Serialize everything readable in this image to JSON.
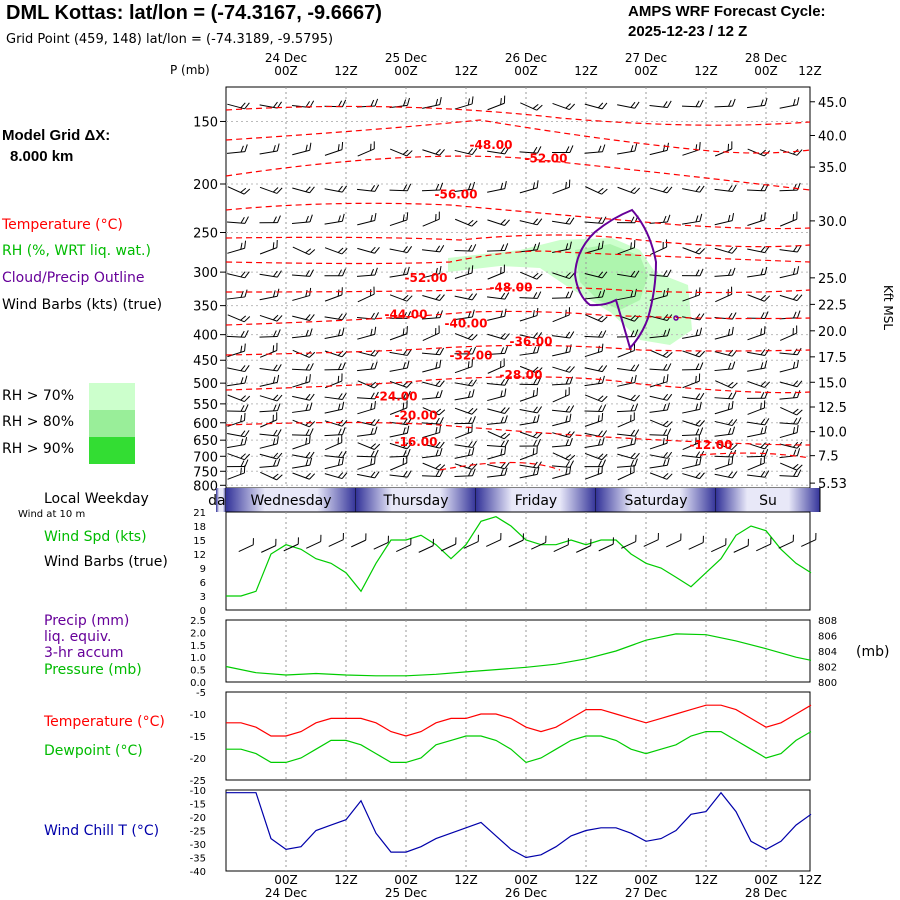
{
  "header": {
    "title": "DML Kottas:  lat/lon = (-74.3167, -9.6667)",
    "grid_point": "Grid Point (459, 148) lat/lon = (-74.3189, -9.5795)",
    "cycle_title": "AMPS WRF Forecast Cycle:",
    "cycle_value": "2025-12-23 / 12  Z"
  },
  "left_panel": {
    "model_grid_label": "Model Grid ΔX:",
    "model_grid_value": "8.000 km",
    "legend": {
      "temperature": "Temperature (°C)",
      "rh": "RH (%, WRT liq. wat.)",
      "cloud": "Cloud/Precip Outline",
      "wind": "Wind Barbs (kts) (true)",
      "rh70": "RH > 70%",
      "rh80": "RH > 80%",
      "rh90": "RH > 90%"
    },
    "local_weekday": "Local Weekday",
    "wind_at": "Wind at 10 m",
    "wind_spd": "Wind Spd (kts)",
    "wind_barbs": "Wind Barbs (true)",
    "precip1": "Precip (mm)",
    "precip2": "liq. equiv.",
    "precip3": "3-hr accum",
    "pressure": "Pressure (mb)",
    "pressure_unit": "(mb)",
    "temp": "Temperature (°C)",
    "dewpoint": "Dewpoint (°C)",
    "windchill": "Wind Chill T (°C)"
  },
  "colors": {
    "temp": "#ff0000",
    "green": "#00cc00",
    "purple": "#660099",
    "blue": "#0000aa",
    "rh70": "#ccffcc",
    "rh80": "#99ee99",
    "rh90": "#33dd33",
    "grid": "#aaaaaa"
  },
  "chart_data": [
    {
      "id": "cross_section",
      "type": "heatmap",
      "ylabel": "P (mb)",
      "right_label": "Kft MSL",
      "time_range_hours": [
        0,
        114
      ],
      "top_dates": [
        "24 Dec",
        "25 Dec",
        "26 Dec",
        "27 Dec",
        "28 Dec"
      ],
      "time_ticks": [
        {
          "h": 12,
          "label": "00Z"
        },
        {
          "h": 24,
          "label": "12Z"
        },
        {
          "h": 36,
          "label": "00Z"
        },
        {
          "h": 48,
          "label": "12Z"
        },
        {
          "h": 60,
          "label": "00Z"
        },
        {
          "h": 72,
          "label": "12Z"
        },
        {
          "h": 84,
          "label": "00Z"
        },
        {
          "h": 96,
          "label": "12Z"
        },
        {
          "h": 108,
          "label": "00Z"
        },
        {
          "h": 120,
          "label": "12Z"
        }
      ],
      "pressure_ticks": [
        150,
        200,
        250,
        300,
        350,
        400,
        450,
        500,
        550,
        600,
        650,
        700,
        750,
        800
      ],
      "height_ticks_kft": [
        {
          "p": 137,
          "label": "45.0"
        },
        {
          "p": 160,
          "label": "40.0"
        },
        {
          "p": 185,
          "label": "35.0"
        },
        {
          "p": 237,
          "label": "30.0"
        },
        {
          "p": 308,
          "label": "25.0"
        },
        {
          "p": 348,
          "label": "22.5"
        },
        {
          "p": 393,
          "label": "20.0"
        },
        {
          "p": 443,
          "label": "17.5"
        },
        {
          "p": 498,
          "label": "15.0"
        },
        {
          "p": 558,
          "label": "12.5"
        },
        {
          "p": 625,
          "label": "10.0"
        },
        {
          "p": 698,
          "label": "7.5"
        },
        {
          "p": 792,
          "label": "5.53"
        }
      ],
      "temperature_labels": [
        {
          "label": "-48.00",
          "h": 53,
          "p": 167
        },
        {
          "label": "-52.00",
          "h": 64,
          "p": 178
        },
        {
          "label": "-56.00",
          "h": 46,
          "p": 210
        },
        {
          "label": "-52.00",
          "h": 40,
          "p": 308
        },
        {
          "label": "-48.00",
          "h": 57,
          "p": 322
        },
        {
          "label": "-44.00",
          "h": 36,
          "p": 365
        },
        {
          "label": "-40.00",
          "h": 48,
          "p": 380
        },
        {
          "label": "-36.00",
          "h": 61,
          "p": 413
        },
        {
          "label": "-32.00",
          "h": 49,
          "p": 440
        },
        {
          "label": "-28.00",
          "h": 59,
          "p": 482
        },
        {
          "label": "-24.00",
          "h": 34,
          "p": 532
        },
        {
          "label": "-20.00",
          "h": 38,
          "p": 580
        },
        {
          "label": "-16.00",
          "h": 38,
          "p": 655
        },
        {
          "label": "-12.00",
          "h": 97,
          "p": 665
        }
      ]
    },
    {
      "id": "wind",
      "type": "line",
      "title": "Wind Spd (kts)",
      "ylim": [
        0,
        21
      ],
      "yticks": [
        0,
        3,
        6,
        9,
        12,
        15,
        18,
        21
      ],
      "x": [
        0,
        3,
        6,
        9,
        12,
        15,
        18,
        21,
        24,
        27,
        30,
        33,
        36,
        39,
        42,
        45,
        48,
        51,
        54,
        57,
        60,
        63,
        66,
        69,
        72,
        75,
        78,
        81,
        84,
        87,
        90,
        93,
        96,
        99,
        102,
        105,
        108,
        111,
        114,
        117
      ],
      "values": [
        3,
        3,
        4,
        12,
        14,
        13,
        11,
        10,
        8,
        4,
        10,
        15,
        15,
        16,
        14,
        11,
        14,
        19,
        20,
        18,
        15,
        14,
        14,
        15,
        14,
        15,
        15,
        12,
        10,
        9,
        7,
        5,
        8,
        11,
        16,
        18,
        17,
        13,
        10,
        8
      ]
    },
    {
      "id": "precip_pressure",
      "type": "line",
      "ylim": [
        0,
        2.5
      ],
      "yticks": [
        0.0,
        0.5,
        1.0,
        1.5,
        2.0,
        2.5
      ],
      "ylim_right": [
        800,
        808
      ],
      "yticks_right": [
        800,
        802,
        804,
        806,
        808
      ],
      "series": [
        {
          "name": "Pressure (mb)",
          "axis": "right",
          "x": [
            0,
            6,
            12,
            18,
            24,
            30,
            36,
            42,
            48,
            54,
            60,
            66,
            72,
            78,
            84,
            90,
            96,
            102,
            108,
            114,
            117
          ],
          "values": [
            802.0,
            801.2,
            800.9,
            801.1,
            800.9,
            800.8,
            800.8,
            801.0,
            801.3,
            801.6,
            801.9,
            802.3,
            803.0,
            804.0,
            805.4,
            806.2,
            806.1,
            805.3,
            804.3,
            803.2,
            802.8
          ]
        }
      ]
    },
    {
      "id": "temp_dew",
      "type": "line",
      "ylim": [
        -25,
        -5
      ],
      "yticks": [
        -25,
        -20,
        -15,
        -10,
        -5
      ],
      "series": [
        {
          "name": "Temperature (°C)",
          "color": "#ff0000",
          "x": [
            0,
            3,
            6,
            9,
            12,
            15,
            18,
            21,
            24,
            27,
            30,
            33,
            36,
            39,
            42,
            45,
            48,
            51,
            54,
            57,
            60,
            63,
            66,
            69,
            72,
            75,
            78,
            81,
            84,
            87,
            90,
            93,
            96,
            99,
            102,
            105,
            108,
            111,
            114,
            117
          ],
          "values": [
            -12,
            -12,
            -13,
            -15,
            -15,
            -14,
            -12,
            -11,
            -11,
            -11,
            -12,
            -14,
            -15,
            -14,
            -12,
            -11,
            -11,
            -10,
            -10,
            -11,
            -13,
            -14,
            -13,
            -11,
            -9,
            -9,
            -10,
            -11,
            -12,
            -11,
            -10,
            -9,
            -8,
            -8,
            -9,
            -11,
            -13,
            -12,
            -10,
            -8
          ]
        },
        {
          "name": "Dewpoint (°C)",
          "color": "#00cc00",
          "x": [
            0,
            3,
            6,
            9,
            12,
            15,
            18,
            21,
            24,
            27,
            30,
            33,
            36,
            39,
            42,
            45,
            48,
            51,
            54,
            57,
            60,
            63,
            66,
            69,
            72,
            75,
            78,
            81,
            84,
            87,
            90,
            93,
            96,
            99,
            102,
            105,
            108,
            111,
            114,
            117
          ],
          "values": [
            -18,
            -18,
            -19,
            -21,
            -21,
            -20,
            -18,
            -16,
            -16,
            -17,
            -19,
            -21,
            -21,
            -20,
            -17,
            -16,
            -15,
            -15,
            -16,
            -18,
            -21,
            -20,
            -18,
            -16,
            -15,
            -15,
            -16,
            -18,
            -19,
            -18,
            -17,
            -15,
            -14,
            -14,
            -16,
            -18,
            -20,
            -19,
            -16,
            -14
          ]
        }
      ]
    },
    {
      "id": "windchill",
      "type": "line",
      "ylim": [
        -40,
        -10
      ],
      "yticks": [
        -40,
        -35,
        -30,
        -25,
        -20,
        -15,
        -10
      ],
      "series": [
        {
          "name": "Wind Chill T (°C)",
          "color": "#0000aa",
          "x": [
            0,
            3,
            6,
            9,
            12,
            15,
            18,
            21,
            24,
            27,
            30,
            33,
            36,
            39,
            42,
            45,
            48,
            51,
            54,
            57,
            60,
            63,
            66,
            69,
            72,
            75,
            78,
            81,
            84,
            87,
            90,
            93,
            96,
            99,
            102,
            105,
            108,
            111,
            114,
            117
          ],
          "values": [
            -11,
            -11,
            -11,
            -28,
            -32,
            -31,
            -25,
            -23,
            -21,
            -14,
            -26,
            -33,
            -33,
            -31,
            -28,
            -26,
            -24,
            -22,
            -27,
            -32,
            -35,
            -34,
            -31,
            -27,
            -25,
            -24,
            -24,
            -26,
            -29,
            -28,
            -25,
            -19,
            -18,
            -11,
            -18,
            -29,
            -32,
            -29,
            -23,
            -19
          ]
        }
      ]
    }
  ],
  "weekday_bar": {
    "days": [
      {
        "name": "Tuesday",
        "label": "day",
        "start_h": -10,
        "end_h": 0
      },
      {
        "name": "Wednesday",
        "label": "Wednesday",
        "start_h": 0,
        "end_h": 26
      },
      {
        "name": "Thursday",
        "label": "Thursday",
        "start_h": 26,
        "end_h": 50
      },
      {
        "name": "Friday",
        "label": "Friday",
        "start_h": 50,
        "end_h": 74
      },
      {
        "name": "Saturday",
        "label": "Saturday",
        "start_h": 74,
        "end_h": 98
      },
      {
        "name": "Sunday",
        "label": "Su",
        "start_h": 98,
        "end_h": 122
      }
    ]
  },
  "bottom_axis": {
    "time_labels": [
      "00Z",
      "12Z",
      "00Z",
      "12Z",
      "00Z",
      "12Z",
      "00Z",
      "12Z",
      "00Z",
      "12Z"
    ],
    "dates": [
      "24 Dec",
      "25 Dec",
      "26 Dec",
      "27 Dec",
      "28 Dec"
    ]
  }
}
